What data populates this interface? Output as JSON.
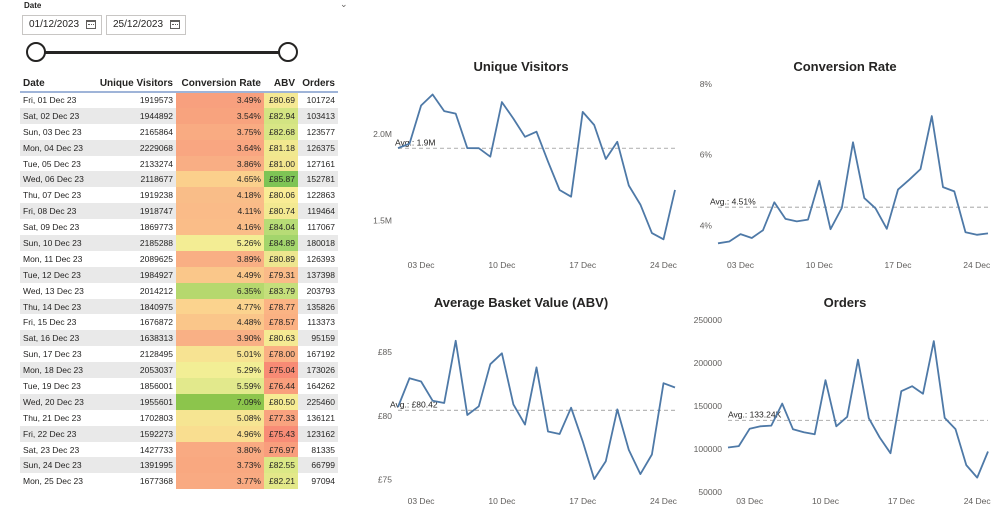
{
  "slicer": {
    "title": "Date",
    "start_date": "01/12/2023",
    "end_date": "25/12/2023",
    "icons": [
      "calendar-icon",
      "chevron-down-icon"
    ]
  },
  "table": {
    "headers": [
      "Date",
      "Unique Visitors",
      "Conversion Rate",
      "ABV",
      "Orders"
    ],
    "rows": [
      {
        "date": "Fri, 01 Dec 23",
        "uv": "1919573",
        "cr": "3.49%",
        "abv": "£80.69",
        "orders": "101724"
      },
      {
        "date": "Sat, 02 Dec 23",
        "uv": "1944892",
        "cr": "3.54%",
        "abv": "£82.94",
        "orders": "103413"
      },
      {
        "date": "Sun, 03 Dec 23",
        "uv": "2165864",
        "cr": "3.75%",
        "abv": "£82.68",
        "orders": "123577"
      },
      {
        "date": "Mon, 04 Dec 23",
        "uv": "2229068",
        "cr": "3.64%",
        "abv": "£81.18",
        "orders": "126375"
      },
      {
        "date": "Tue, 05 Dec 23",
        "uv": "2133274",
        "cr": "3.86%",
        "abv": "£81.00",
        "orders": "127161"
      },
      {
        "date": "Wed, 06 Dec 23",
        "uv": "2118677",
        "cr": "4.65%",
        "abv": "£85.87",
        "orders": "152781"
      },
      {
        "date": "Thu, 07 Dec 23",
        "uv": "1919238",
        "cr": "4.18%",
        "abv": "£80.06",
        "orders": "122863"
      },
      {
        "date": "Fri, 08 Dec 23",
        "uv": "1918747",
        "cr": "4.11%",
        "abv": "£80.74",
        "orders": "119464"
      },
      {
        "date": "Sat, 09 Dec 23",
        "uv": "1869773",
        "cr": "4.16%",
        "abv": "£84.04",
        "orders": "117067"
      },
      {
        "date": "Sun, 10 Dec 23",
        "uv": "2185288",
        "cr": "5.26%",
        "abv": "£84.89",
        "orders": "180018"
      },
      {
        "date": "Mon, 11 Dec 23",
        "uv": "2089625",
        "cr": "3.89%",
        "abv": "£80.89",
        "orders": "126393"
      },
      {
        "date": "Tue, 12 Dec 23",
        "uv": "1984927",
        "cr": "4.49%",
        "abv": "£79.31",
        "orders": "137398"
      },
      {
        "date": "Wed, 13 Dec 23",
        "uv": "2014212",
        "cr": "6.35%",
        "abv": "£83.79",
        "orders": "203793"
      },
      {
        "date": "Thu, 14 Dec 23",
        "uv": "1840975",
        "cr": "4.77%",
        "abv": "£78.77",
        "orders": "135826"
      },
      {
        "date": "Fri, 15 Dec 23",
        "uv": "1676872",
        "cr": "4.48%",
        "abv": "£78.57",
        "orders": "113373"
      },
      {
        "date": "Sat, 16 Dec 23",
        "uv": "1638313",
        "cr": "3.90%",
        "abv": "£80.63",
        "orders": "95159"
      },
      {
        "date": "Sun, 17 Dec 23",
        "uv": "2128495",
        "cr": "5.01%",
        "abv": "£78.00",
        "orders": "167192"
      },
      {
        "date": "Mon, 18 Dec 23",
        "uv": "2053037",
        "cr": "5.29%",
        "abv": "£75.04",
        "orders": "173026"
      },
      {
        "date": "Tue, 19 Dec 23",
        "uv": "1856001",
        "cr": "5.59%",
        "abv": "£76.44",
        "orders": "164262"
      },
      {
        "date": "Wed, 20 Dec 23",
        "uv": "1955601",
        "cr": "7.09%",
        "abv": "£80.50",
        "orders": "225460"
      },
      {
        "date": "Thu, 21 Dec 23",
        "uv": "1702803",
        "cr": "5.08%",
        "abv": "£77.33",
        "orders": "136121"
      },
      {
        "date": "Fri, 22 Dec 23",
        "uv": "1592273",
        "cr": "4.96%",
        "abv": "£75.43",
        "orders": "123162"
      },
      {
        "date": "Sat, 23 Dec 23",
        "uv": "1427733",
        "cr": "3.80%",
        "abv": "£76.97",
        "orders": "81335"
      },
      {
        "date": "Sun, 24 Dec 23",
        "uv": "1391995",
        "cr": "3.73%",
        "abv": "£82.55",
        "orders": "66799"
      },
      {
        "date": "Mon, 25 Dec 23",
        "uv": "1677368",
        "cr": "3.77%",
        "abv": "£82.21",
        "orders": "97094"
      }
    ],
    "cr_colors": [
      "#f8a07e",
      "#f8a37e",
      "#f9ab82",
      "#f9a681",
      "#f9ae84",
      "#fbd08c",
      "#f9bd88",
      "#fabb88",
      "#fabd88",
      "#f3ed94",
      "#f9af84",
      "#fac78a",
      "#b6d86e",
      "#fbd38e",
      "#fac68a",
      "#f9b085",
      "#f7e392",
      "#f2ee95",
      "#e2e98c",
      "#8cc54c",
      "#f6e592",
      "#f9de90",
      "#f9aa82",
      "#f9a880",
      "#f9aa82"
    ],
    "abv_colors": [
      "#f5e994",
      "#d3e482",
      "#d8e685",
      "#f1e88f",
      "#f3e68f",
      "#7ec455",
      "#f9ec95",
      "#f3e991",
      "#b7dc76",
      "#a3d56c",
      "#eee68f",
      "#faba88",
      "#c5df7b",
      "#fbb484",
      "#fbb183",
      "#f5ea93",
      "#fab083",
      "#f88b75",
      "#f99f7c",
      "#f6eb93",
      "#f9a37f",
      "#f88c76",
      "#f99e7d",
      "#dce886",
      "#e3e889"
    ]
  },
  "charts": {
    "x_ticks": [
      "03 Dec",
      "10 Dec",
      "17 Dec",
      "24 Dec"
    ],
    "line_color": "#4e79a7",
    "avg_color": "#b8b8b8"
  },
  "chart_data": [
    {
      "type": "line",
      "title": "Unique Visitors",
      "x": [
        "01 Dec",
        "02 Dec",
        "03 Dec",
        "04 Dec",
        "05 Dec",
        "06 Dec",
        "07 Dec",
        "08 Dec",
        "09 Dec",
        "10 Dec",
        "11 Dec",
        "12 Dec",
        "13 Dec",
        "14 Dec",
        "15 Dec",
        "16 Dec",
        "17 Dec",
        "18 Dec",
        "19 Dec",
        "20 Dec",
        "21 Dec",
        "22 Dec",
        "23 Dec",
        "24 Dec",
        "25 Dec"
      ],
      "values": [
        1919573,
        1944892,
        2165864,
        2229068,
        2133274,
        2118677,
        1919238,
        1918747,
        1869773,
        2185288,
        2089625,
        1984927,
        2014212,
        1840975,
        1676872,
        1638313,
        2128495,
        2053037,
        1856001,
        1955601,
        1702803,
        1592273,
        1427733,
        1391995,
        1677368
      ],
      "y_ticks": [
        {
          "v": 1500000,
          "label": "1.5M"
        },
        {
          "v": 2000000,
          "label": "2.0M"
        }
      ],
      "ylim": [
        1330000,
        2290000
      ],
      "average": 1918000,
      "avg_label": "Avg.: 1.9M"
    },
    {
      "type": "line",
      "title": "Conversion Rate",
      "x": [
        "01 Dec",
        "02 Dec",
        "03 Dec",
        "04 Dec",
        "05 Dec",
        "06 Dec",
        "07 Dec",
        "08 Dec",
        "09 Dec",
        "10 Dec",
        "11 Dec",
        "12 Dec",
        "13 Dec",
        "14 Dec",
        "15 Dec",
        "16 Dec",
        "17 Dec",
        "18 Dec",
        "19 Dec",
        "20 Dec",
        "21 Dec",
        "22 Dec",
        "23 Dec",
        "24 Dec",
        "25 Dec"
      ],
      "values": [
        3.49,
        3.54,
        3.75,
        3.64,
        3.86,
        4.65,
        4.18,
        4.11,
        4.16,
        5.26,
        3.89,
        4.49,
        6.35,
        4.77,
        4.48,
        3.9,
        5.01,
        5.29,
        5.59,
        7.09,
        5.08,
        4.96,
        3.8,
        3.73,
        3.77
      ],
      "y_ticks": [
        {
          "v": 4,
          "label": "4%"
        },
        {
          "v": 6,
          "label": "6%"
        },
        {
          "v": 8,
          "label": "8%"
        }
      ],
      "ylim": [
        3.3,
        8.0
      ],
      "average": 4.51,
      "avg_label": "Avg.: 4.51%"
    },
    {
      "type": "line",
      "title": "Average Basket Value (ABV)",
      "x": [
        "01 Dec",
        "02 Dec",
        "03 Dec",
        "04 Dec",
        "05 Dec",
        "06 Dec",
        "07 Dec",
        "08 Dec",
        "09 Dec",
        "10 Dec",
        "11 Dec",
        "12 Dec",
        "13 Dec",
        "14 Dec",
        "15 Dec",
        "16 Dec",
        "17 Dec",
        "18 Dec",
        "19 Dec",
        "20 Dec",
        "21 Dec",
        "22 Dec",
        "23 Dec",
        "24 Dec",
        "25 Dec"
      ],
      "values": [
        80.69,
        82.94,
        82.68,
        81.18,
        81.0,
        85.87,
        80.06,
        80.74,
        84.04,
        84.89,
        80.89,
        79.31,
        83.79,
        78.77,
        78.57,
        80.63,
        78.0,
        75.04,
        76.44,
        80.5,
        77.33,
        75.43,
        76.97,
        82.55,
        82.21
      ],
      "y_ticks": [
        {
          "v": 75,
          "label": "£75"
        },
        {
          "v": 80,
          "label": "£80"
        },
        {
          "v": 85,
          "label": "£85"
        }
      ],
      "ylim": [
        74.5,
        87.5
      ],
      "average": 80.42,
      "avg_label": "Avg.: £80.42"
    },
    {
      "type": "line",
      "title": "Orders",
      "x": [
        "01 Dec",
        "02 Dec",
        "03 Dec",
        "04 Dec",
        "05 Dec",
        "06 Dec",
        "07 Dec",
        "08 Dec",
        "09 Dec",
        "10 Dec",
        "11 Dec",
        "12 Dec",
        "13 Dec",
        "14 Dec",
        "15 Dec",
        "16 Dec",
        "17 Dec",
        "18 Dec",
        "19 Dec",
        "20 Dec",
        "21 Dec",
        "22 Dec",
        "23 Dec",
        "24 Dec",
        "25 Dec"
      ],
      "values": [
        101724,
        103413,
        123577,
        126375,
        127161,
        152781,
        122863,
        119464,
        117067,
        180018,
        126393,
        137398,
        203793,
        135826,
        113373,
        95159,
        167192,
        173026,
        164262,
        225460,
        136121,
        123162,
        81335,
        66799,
        97094
      ],
      "y_ticks": [
        {
          "v": 50000,
          "label": "50000"
        },
        {
          "v": 100000,
          "label": "100000"
        },
        {
          "v": 150000,
          "label": "150000"
        },
        {
          "v": 200000,
          "label": "200000"
        },
        {
          "v": 250000,
          "label": "250000"
        }
      ],
      "ylim": [
        50000,
        250000
      ],
      "average": 133240,
      "avg_label": "Avg.: 133.24K"
    }
  ]
}
